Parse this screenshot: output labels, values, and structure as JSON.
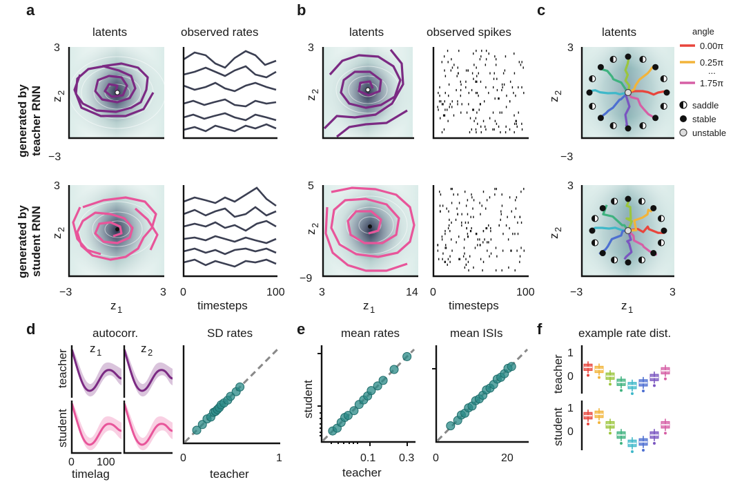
{
  "figure": {
    "panel_letters": [
      "a",
      "b",
      "c",
      "d",
      "e",
      "f"
    ],
    "row_labels": {
      "teacher": [
        "generated by",
        "teacher RNN"
      ],
      "student": [
        "generated by",
        "student RNN"
      ]
    },
    "titles": {
      "latents": "latents",
      "observed_rates": "observed rates",
      "observed_spikes": "observed spikes",
      "autocorr": "autocorr.",
      "sd_rates": "SD rates",
      "mean_rates": "mean rates",
      "mean_isis": "mean ISIs",
      "example_rate_dist": "example rate dist."
    },
    "axis_labels": {
      "z1": "z",
      "z2": "z",
      "sub1": "1",
      "sub2": "2",
      "timesteps": "timesteps",
      "timelag": "timelag",
      "teacher": "teacher",
      "student": "student"
    },
    "ticks": {
      "a_y_top": "3",
      "a_y_bot": "−3",
      "a_x_left": "−3",
      "a_x_right": "3",
      "a_t0": "0",
      "a_t1": "100",
      "b_y_top_teacher": "3",
      "b_y_top_student": "5",
      "b_y_bot_student": "−9",
      "b_x_left": "3",
      "b_x_right": "14",
      "b_t0": "0",
      "b_t1": "100",
      "c_y_top": "3",
      "c_y_bot": "−3",
      "c_x_left": "−3",
      "c_x_right": "3",
      "d_lag0": "0",
      "d_lag1": "100",
      "d_sd0": "0",
      "d_sd1": "1",
      "e_r1": "0.1",
      "e_r2": "0.3",
      "e_i0": "0",
      "e_i1": "20",
      "f_1": "1",
      "f_0": "0"
    },
    "legend": {
      "title": "angle",
      "items": [
        {
          "label": "0.00π",
          "color": "#e8453c"
        },
        {
          "label": "0.25π",
          "color": "#f2b43a"
        },
        {
          "label": "...",
          "color": ""
        },
        {
          "label": "1.75π",
          "color": "#d65fa5"
        }
      ],
      "fixed_points": [
        {
          "label": "saddle",
          "kind": "half"
        },
        {
          "label": "stable",
          "kind": "filled"
        },
        {
          "label": "unstable",
          "kind": "open"
        }
      ]
    },
    "colors": {
      "teacher": "#7b2a83",
      "student": "#e8559a",
      "rates": "#3b3f52",
      "scatter": "#2a8a87",
      "diag": "#888888"
    }
  },
  "chart_data": [
    {
      "type": "line",
      "panel": "a",
      "title": "observed rates",
      "xlabel": "timesteps",
      "xlim": [
        0,
        100
      ],
      "series": [
        {
          "values": "teacher"
        },
        {
          "values": "student"
        }
      ]
    },
    {
      "type": "scatter",
      "panel": "d",
      "title": "SD rates",
      "xlabel": "teacher",
      "xlim": [
        0,
        1
      ],
      "x": [
        0.14,
        0.2,
        0.25,
        0.29,
        0.32,
        0.34,
        0.36,
        0.38,
        0.4,
        0.43,
        0.47,
        0.5,
        0.56,
        0.6
      ],
      "y": [
        0.14,
        0.2,
        0.26,
        0.28,
        0.33,
        0.34,
        0.36,
        0.38,
        0.41,
        0.43,
        0.46,
        0.5,
        0.55,
        0.6
      ]
    },
    {
      "type": "scatter",
      "panel": "e",
      "title": "mean rates",
      "xlabel": "teacher",
      "ylabel": "student",
      "scale": "log",
      "x": [
        0.04,
        0.045,
        0.05,
        0.055,
        0.06,
        0.07,
        0.08,
        0.09,
        0.1,
        0.11,
        0.13,
        0.15,
        0.2,
        0.28
      ],
      "y": [
        0.04,
        0.043,
        0.05,
        0.057,
        0.06,
        0.068,
        0.08,
        0.09,
        0.1,
        0.115,
        0.13,
        0.15,
        0.2,
        0.28
      ]
    },
    {
      "type": "scatter",
      "panel": "e",
      "title": "mean ISIs",
      "xlim": [
        0,
        25
      ],
      "x": [
        4,
        6,
        7,
        8,
        9,
        10,
        11,
        12,
        13,
        14,
        15,
        16,
        17,
        18,
        19,
        20,
        21
      ],
      "y": [
        4.5,
        6,
        7.5,
        8,
        9.5,
        10,
        11.5,
        12,
        13,
        14.5,
        15,
        16,
        17.5,
        18,
        19,
        20.5,
        21
      ]
    },
    {
      "type": "box",
      "panel": "f",
      "title": "example rate dist.",
      "series": [
        {
          "values": [
            0.38,
            0.3,
            0.05,
            -0.18,
            -0.3,
            -0.2,
            0.0,
            0.25
          ]
        },
        {
          "values": [
            0.65,
            0.7,
            0.32,
            -0.05,
            -0.35,
            -0.3,
            -0.05,
            0.32
          ]
        }
      ]
    }
  ]
}
